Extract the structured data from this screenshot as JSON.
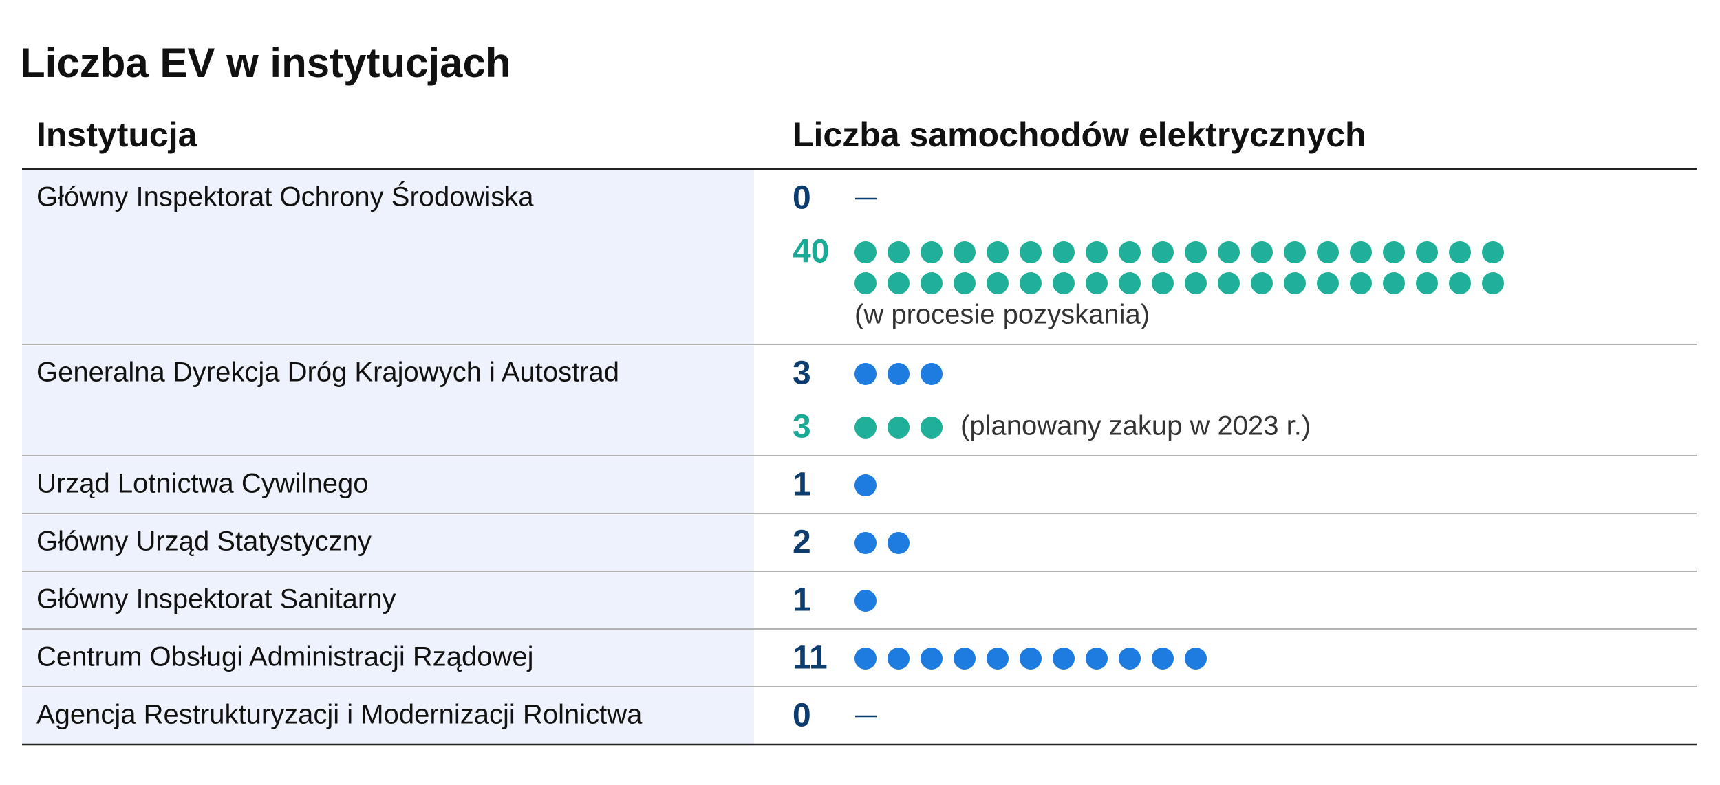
{
  "title": "Liczba EV w instytucjach",
  "table": {
    "headers": [
      "Instytucja",
      "Liczba samochodów elektrycznych"
    ],
    "rows": [
      {
        "institution": "Główny Inspektorat Ochrony Środowiska",
        "entries": [
          {
            "value": 0,
            "color": "#0d3c6e",
            "dot_color": "#1e7be0"
          },
          {
            "value": 40,
            "color": "#1aab96",
            "dot_color": "#20b09a",
            "note": "(w procesie pozyskania)"
          }
        ]
      },
      {
        "institution": "Generalna Dyrekcja Dróg Krajowych i Autostrad",
        "entries": [
          {
            "value": 3,
            "color": "#0d3c6e",
            "dot_color": "#1e7be0"
          },
          {
            "value": 3,
            "color": "#1aab96",
            "dot_color": "#20b09a",
            "note": "(planowany zakup w 2023 r.)"
          }
        ]
      },
      {
        "institution": "Urząd Lotnictwa Cywilnego",
        "entries": [
          {
            "value": 1,
            "color": "#0d3c6e",
            "dot_color": "#1e7be0"
          }
        ]
      },
      {
        "institution": "Główny Urząd Statystyczny",
        "entries": [
          {
            "value": 2,
            "color": "#0d3c6e",
            "dot_color": "#1e7be0"
          }
        ]
      },
      {
        "institution": "Główny Inspektorat Sanitarny",
        "entries": [
          {
            "value": 1,
            "color": "#0d3c6e",
            "dot_color": "#1e7be0"
          }
        ]
      },
      {
        "institution": "Centrum Obsługi Administracji Rządowej",
        "entries": [
          {
            "value": 11,
            "color": "#0d3c6e",
            "dot_color": "#1e7be0"
          }
        ]
      },
      {
        "institution": "Agencja Restrukturyzacji i Modernizacji Rolnictwa",
        "entries": [
          {
            "value": 0,
            "color": "#0d3c6e",
            "dot_color": "#1e7be0"
          }
        ]
      }
    ]
  }
}
